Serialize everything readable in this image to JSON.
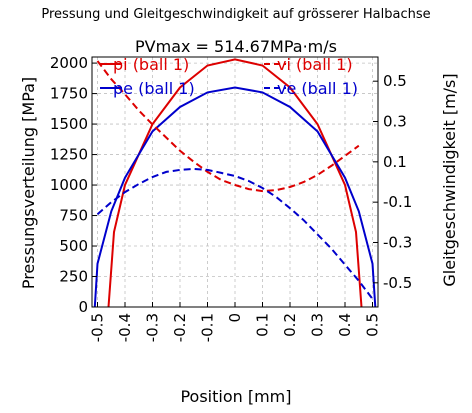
{
  "figure": {
    "suptitle": "Pressung und Gleitgeschwindigkeit auf grösserer Halbachse",
    "subtitle": "PVmax = 514.67MPa·m/s"
  },
  "chart_data": {
    "type": "line",
    "xlabel": "Position [mm]",
    "ylabel_left": "Pressungsverteilung [MPa]",
    "ylabel_right": "Gleitgeschwindigkeit [m/s]",
    "xlim": [
      -0.52,
      0.52
    ],
    "ylim_left": [
      0,
      2050
    ],
    "ylim_right": [
      -0.62,
      0.62
    ],
    "x_ticks": [
      -0.5,
      -0.4,
      -0.3,
      -0.2,
      -0.1,
      0,
      0.1,
      0.2,
      0.3,
      0.4,
      0.5
    ],
    "x_tick_labels": [
      "-0.5",
      "-0.4",
      "-0.3",
      "-0.2",
      "-0.1",
      "0",
      "0.1",
      "0.2",
      "0.3",
      "0.4",
      "0.5"
    ],
    "y_left_ticks": [
      0,
      250,
      500,
      750,
      1000,
      1250,
      1500,
      1750,
      2000
    ],
    "y_left_tick_labels": [
      "0",
      "250",
      "500",
      "750",
      "1000",
      "1250",
      "1500",
      "1750",
      "2000"
    ],
    "y_right_ticks": [
      -0.5,
      -0.3,
      -0.1,
      0.1,
      0.3,
      0.5
    ],
    "y_right_tick_labels": [
      "-0.5",
      "-0.3",
      "-0.1",
      "0.1",
      "0.3",
      "0.5"
    ],
    "grid": true,
    "legend": "top",
    "series": [
      {
        "name": "pi (ball 1)",
        "axis": "left",
        "color": "#dd0000",
        "style": "solid",
        "x": [
          -0.46,
          -0.44,
          -0.4,
          -0.3,
          -0.2,
          -0.1,
          0,
          0.1,
          0.2,
          0.3,
          0.4,
          0.44,
          0.46
        ],
        "y": [
          0,
          615,
          1000,
          1500,
          1800,
          1980,
          2030,
          1980,
          1800,
          1500,
          1000,
          615,
          0
        ]
      },
      {
        "name": "pe (ball 1)",
        "axis": "left",
        "color": "#0000cc",
        "style": "solid",
        "x": [
          -0.51,
          -0.5,
          -0.45,
          -0.4,
          -0.3,
          -0.2,
          -0.1,
          0,
          0.1,
          0.2,
          0.3,
          0.4,
          0.45,
          0.5,
          0.51
        ],
        "y": [
          0,
          355,
          785,
          1060,
          1440,
          1640,
          1760,
          1800,
          1760,
          1640,
          1440,
          1060,
          785,
          355,
          0
        ]
      },
      {
        "name": "vi (ball 1)",
        "axis": "right",
        "color": "#dd0000",
        "style": "dashed",
        "x": [
          -0.5,
          -0.45,
          -0.4,
          -0.35,
          -0.3,
          -0.25,
          -0.2,
          -0.15,
          -0.1,
          -0.05,
          0,
          0.05,
          0.1,
          0.15,
          0.2,
          0.25,
          0.3,
          0.35,
          0.4,
          0.45
        ],
        "y": [
          0.6,
          0.51,
          0.435,
          0.355,
          0.285,
          0.22,
          0.155,
          0.1,
          0.05,
          0.01,
          -0.015,
          -0.035,
          -0.045,
          -0.04,
          -0.025,
          0.0,
          0.035,
          0.08,
          0.13,
          0.18
        ]
      },
      {
        "name": "ve (ball 1)",
        "axis": "right",
        "color": "#0000cc",
        "style": "dashed",
        "x": [
          -0.5,
          -0.45,
          -0.4,
          -0.35,
          -0.3,
          -0.25,
          -0.2,
          -0.15,
          -0.1,
          -0.05,
          0,
          0.05,
          0.1,
          0.15,
          0.2,
          0.25,
          0.3,
          0.35,
          0.4,
          0.45,
          0.5
        ],
        "y": [
          -0.16,
          -0.1,
          -0.05,
          -0.01,
          0.025,
          0.05,
          0.06,
          0.065,
          0.06,
          0.045,
          0.03,
          0.005,
          -0.03,
          -0.075,
          -0.13,
          -0.19,
          -0.26,
          -0.33,
          -0.41,
          -0.49,
          -0.58
        ]
      }
    ]
  }
}
